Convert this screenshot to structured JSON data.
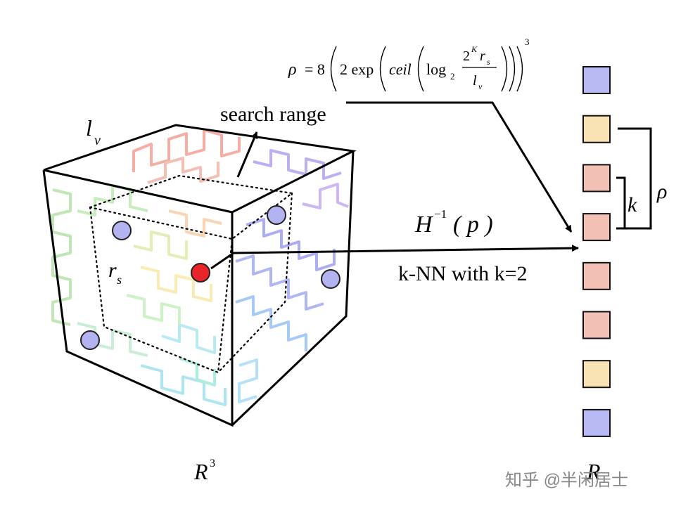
{
  "formula": {
    "rho": "ρ",
    "equals_eight": "= 8",
    "two_exp": "2 exp",
    "ceil": "ceil",
    "log": "log",
    "log_base": "2",
    "numerator_two": "2",
    "numerator_k": "K",
    "numerator_r": "r",
    "numerator_r_sub": "s",
    "denominator_l": "l",
    "denominator_l_sub": "v",
    "outer_exponent": "3"
  },
  "labels": {
    "search_range": "search range",
    "lv_main": "l",
    "lv_sub": "v",
    "rs_main": "r",
    "rs_sub": "s",
    "r3_main": "R",
    "r3_sup": "3",
    "r_bottom": "R",
    "h_inverse_main": "H",
    "h_inverse_sup": "−1",
    "h_inverse_arg": "( p )",
    "knn": "k-NN with k=2",
    "k_bracket": "k",
    "rho_bracket": "ρ",
    "watermark": "知乎 @半闲居士"
  },
  "colors": {
    "blue_point": "#b3b3f2",
    "red_point": "#e8262a",
    "cell_blue": "#b9b9f3",
    "cell_yellow": "#f9e3b4",
    "cell_pink": "#f2c0b4"
  },
  "array_cells": [
    "blue",
    "yellow",
    "pink",
    "pink",
    "pink",
    "pink",
    "yellow",
    "blue"
  ]
}
